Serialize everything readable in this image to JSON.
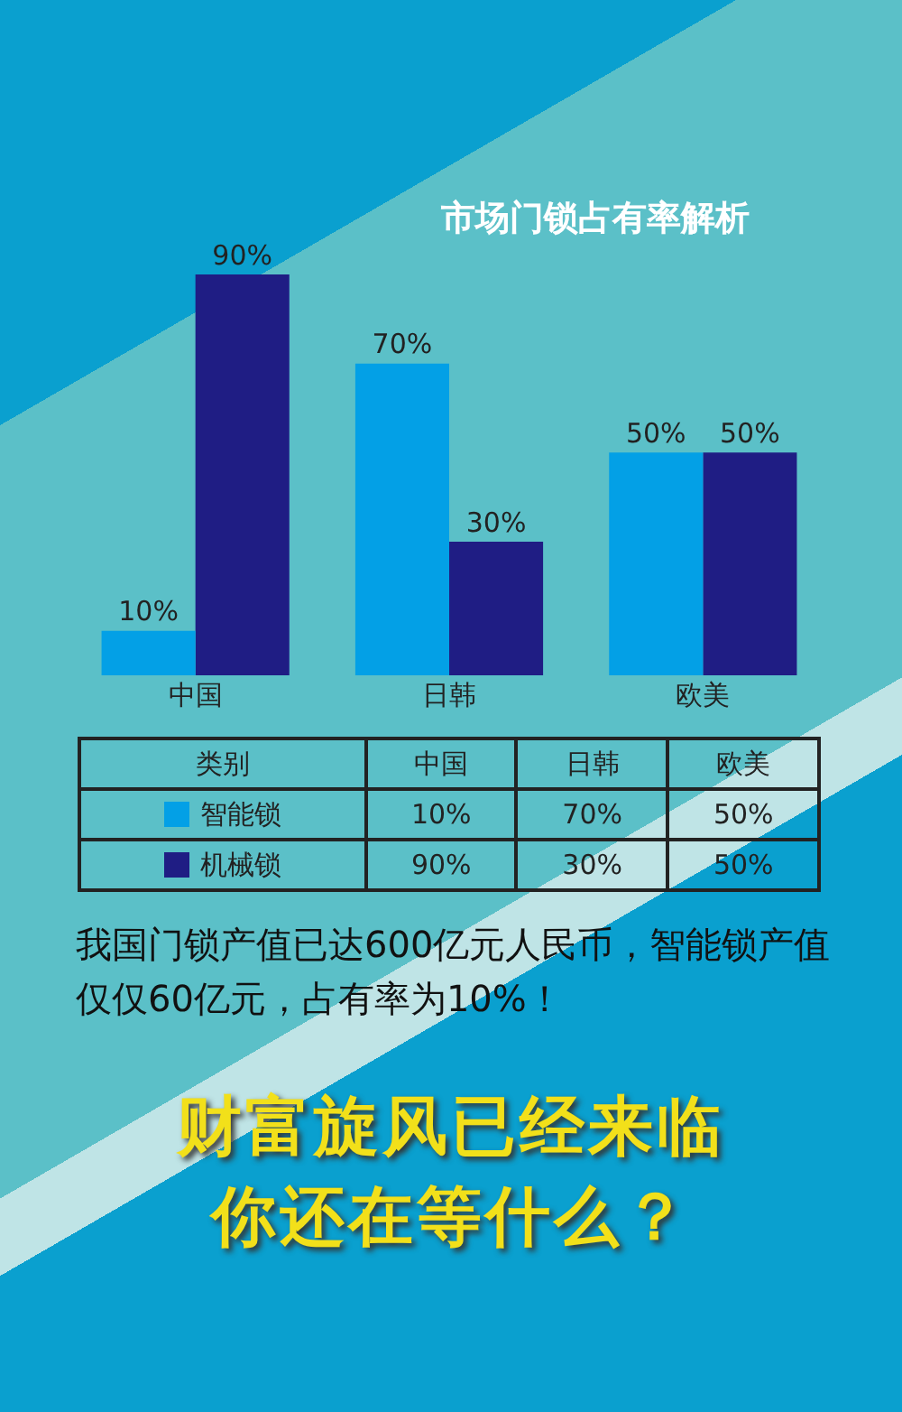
{
  "chart_data": {
    "type": "bar",
    "title": "市场门锁占有率解析",
    "categories": [
      "中国",
      "日韩",
      "欧美"
    ],
    "series": [
      {
        "name": "智能锁",
        "color": "#03a0e6",
        "values": [
          10,
          70,
          50
        ],
        "value_labels": [
          "10%",
          "70%",
          "50%"
        ]
      },
      {
        "name": "机械锁",
        "color": "#1f1d84",
        "values": [
          90,
          30,
          50
        ],
        "value_labels": [
          "90%",
          "30%",
          "50%"
        ]
      }
    ],
    "legend": "bottom",
    "legend_title": "类别",
    "tick_labels": "x",
    "grid": false,
    "annotations": [
      "我国门锁产值已达600亿元人民币，智能锁产值仅仅60亿元，占有率为10%！",
      "财富旋风已经来临",
      "你还在等什么？"
    ]
  }
}
